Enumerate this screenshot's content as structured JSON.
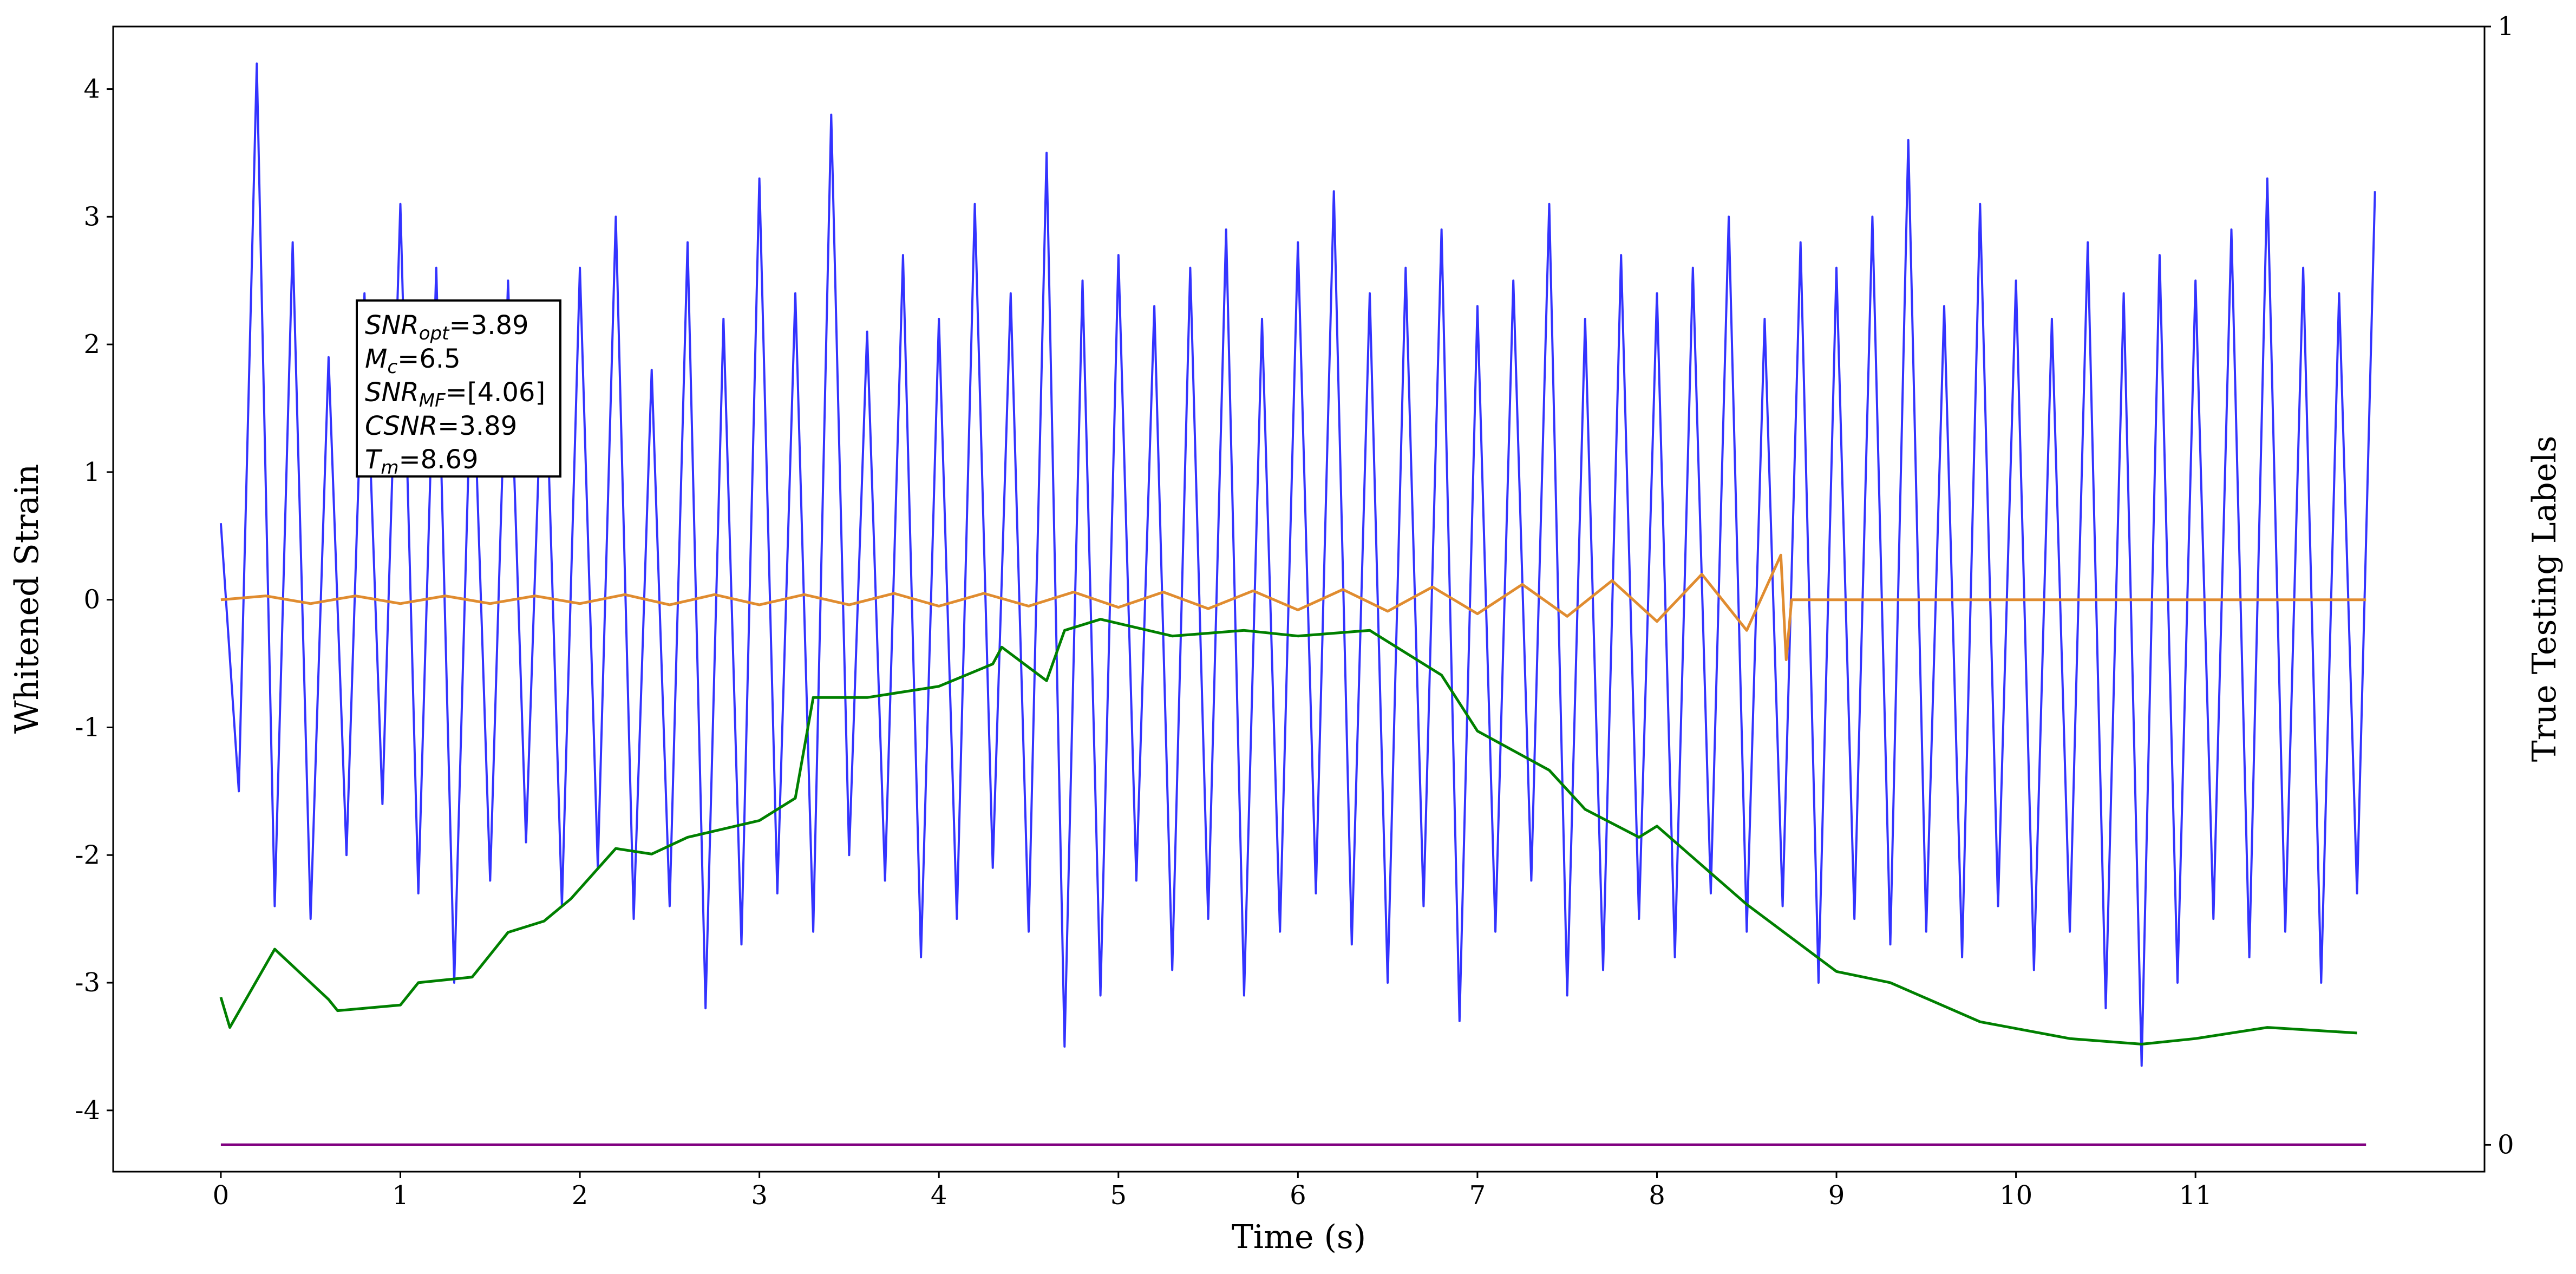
{
  "chart_data": {
    "type": "line",
    "xlabel": "Time (s)",
    "ylabel": "Whitened Strain",
    "y2label": "True Testing Labels",
    "xlim": [
      -0.6,
      12.61
    ],
    "ylim": [
      -4.48,
      4.49
    ],
    "y2lim": [
      -0.024,
      1.0
    ],
    "xticks": [
      0,
      1,
      2,
      3,
      4,
      5,
      6,
      7,
      8,
      9,
      10,
      11
    ],
    "yticks": [
      -4,
      -3,
      -2,
      -1,
      0,
      1,
      2,
      3,
      4
    ],
    "y2ticks": [
      0,
      1
    ],
    "grid": false,
    "annotation": [
      {
        "text": "SNR",
        "sub": "opt",
        "rest": "=3.89"
      },
      {
        "text": "M",
        "sub": "c",
        "rest": "=6.5"
      },
      {
        "text": "SNR",
        "sub": "MF",
        "rest": "=[4.06]"
      },
      {
        "text": "CSNR",
        "sub": null,
        "rest": "=3.89"
      },
      {
        "text": "T",
        "sub": "m",
        "rest": "=8.69"
      }
    ],
    "series": [
      {
        "color": "#3333ff",
        "axis": "y",
        "x": [
          0,
          0.1,
          0.2,
          0.3,
          0.4,
          0.5,
          0.6,
          0.7,
          0.8,
          0.9,
          1,
          1.1,
          1.2,
          1.3,
          1.4,
          1.5,
          1.6,
          1.7,
          1.8,
          1.9,
          2,
          2.1,
          2.2,
          2.3,
          2.4,
          2.5,
          2.6,
          2.7,
          2.8,
          2.9,
          3,
          3.1,
          3.2,
          3.3,
          3.4,
          3.5,
          3.6,
          3.7,
          3.8,
          3.9,
          4,
          4.1,
          4.2,
          4.3,
          4.4,
          4.5,
          4.6,
          4.7,
          4.8,
          4.9,
          5,
          5.1,
          5.2,
          5.3,
          5.4,
          5.5,
          5.6,
          5.7,
          5.8,
          5.9,
          6,
          6.1,
          6.2,
          6.3,
          6.4,
          6.5,
          6.6,
          6.7,
          6.8,
          6.9,
          7,
          7.1,
          7.2,
          7.3,
          7.4,
          7.5,
          7.6,
          7.7,
          7.8,
          7.9,
          8,
          8.1,
          8.2,
          8.3,
          8.4,
          8.5,
          8.6,
          8.7,
          8.8,
          8.9,
          9,
          9.1,
          9.2,
          9.3,
          9.4,
          9.5,
          9.6,
          9.7,
          9.8,
          9.9,
          10,
          10.1,
          10.2,
          10.3,
          10.4,
          10.5,
          10.6,
          10.7,
          10.8,
          10.9,
          11,
          11.1,
          11.2,
          11.3,
          11.4,
          11.5,
          11.6,
          11.7,
          11.8,
          11.9,
          12
        ],
        "values": [
          0.6,
          -1.5,
          4.2,
          -2.4,
          2.8,
          -2.5,
          1.9,
          -2.0,
          2.4,
          -1.6,
          3.1,
          -2.3,
          2.6,
          -3.0,
          2.1,
          -2.2,
          2.5,
          -1.9,
          2.3,
          -2.4,
          2.6,
          -2.1,
          3.0,
          -2.5,
          1.8,
          -2.4,
          2.8,
          -3.2,
          2.2,
          -2.7,
          3.3,
          -2.3,
          2.4,
          -2.6,
          3.8,
          -2.0,
          2.1,
          -2.2,
          2.7,
          -2.8,
          2.2,
          -2.5,
          3.1,
          -2.1,
          2.4,
          -2.6,
          3.5,
          -3.5,
          2.5,
          -3.1,
          2.7,
          -2.2,
          2.3,
          -2.9,
          2.6,
          -2.5,
          2.9,
          -3.1,
          2.2,
          -2.6,
          2.8,
          -2.3,
          3.2,
          -2.7,
          2.4,
          -3.0,
          2.6,
          -2.4,
          2.9,
          -3.3,
          2.3,
          -2.6,
          2.5,
          -2.2,
          3.1,
          -3.1,
          2.2,
          -2.9,
          2.7,
          -2.5,
          2.4,
          -2.8,
          2.6,
          -2.3,
          3.0,
          -2.6,
          2.2,
          -2.4,
          2.8,
          -3.0,
          2.6,
          -2.5,
          3.0,
          -2.7,
          3.6,
          -2.6,
          2.3,
          -2.8,
          3.1,
          -2.4,
          2.5,
          -2.9,
          2.2,
          -2.6,
          2.8,
          -3.2,
          2.4,
          -3.65,
          2.7,
          -3.0,
          2.5,
          -2.5,
          2.9,
          -2.8,
          3.3,
          -2.6,
          2.6,
          -3.0,
          2.4,
          -2.3,
          3.2
        ]
      },
      {
        "color": "#e08c30",
        "axis": "y",
        "x": [
          0,
          0.25,
          0.5,
          0.75,
          1,
          1.25,
          1.5,
          1.75,
          2,
          2.25,
          2.5,
          2.75,
          3,
          3.25,
          3.5,
          3.75,
          4,
          4.25,
          4.5,
          4.75,
          5,
          5.25,
          5.5,
          5.75,
          6,
          6.25,
          6.5,
          6.75,
          7,
          7.25,
          7.5,
          7.75,
          8,
          8.25,
          8.5,
          8.69,
          8.72,
          8.75,
          11.95
        ],
        "values": [
          0,
          0.03,
          -0.03,
          0.03,
          -0.03,
          0.03,
          -0.03,
          0.03,
          -0.03,
          0.04,
          -0.04,
          0.04,
          -0.04,
          0.04,
          -0.04,
          0.05,
          -0.05,
          0.05,
          -0.05,
          0.06,
          -0.06,
          0.06,
          -0.07,
          0.07,
          -0.08,
          0.08,
          -0.09,
          0.1,
          -0.11,
          0.12,
          -0.13,
          0.15,
          -0.17,
          0.2,
          -0.24,
          0.35,
          -0.47,
          0,
          0
        ]
      },
      {
        "color": "#008000",
        "axis": "y2",
        "x": [
          0,
          0.05,
          0.3,
          0.6,
          0.65,
          1.0,
          1.1,
          1.4,
          1.5,
          1.6,
          1.8,
          1.95,
          2.2,
          2.4,
          2.6,
          3.0,
          3.2,
          3.3,
          3.6,
          4.0,
          4.3,
          4.35,
          4.6,
          4.7,
          4.9,
          5.3,
          5.7,
          6.0,
          6.4,
          6.6,
          6.8,
          7.0,
          7.4,
          7.6,
          7.9,
          8.0,
          8.5,
          9.0,
          9.3,
          9.8,
          10.3,
          10.7,
          11.0,
          11.4,
          11.9
        ],
        "values": [
          0.132,
          0.105,
          0.175,
          0.13,
          0.12,
          0.125,
          0.145,
          0.15,
          0.17,
          0.19,
          0.2,
          0.22,
          0.265,
          0.26,
          0.275,
          0.29,
          0.31,
          0.4,
          0.4,
          0.41,
          0.43,
          0.445,
          0.415,
          0.46,
          0.47,
          0.455,
          0.46,
          0.455,
          0.46,
          0.44,
          0.42,
          0.37,
          0.335,
          0.3,
          0.275,
          0.285,
          0.215,
          0.155,
          0.145,
          0.11,
          0.095,
          0.09,
          0.095,
          0.105,
          0.1
        ]
      },
      {
        "color": "#800080",
        "axis": "y2",
        "x": [
          0,
          11.95
        ],
        "values": [
          0,
          0
        ]
      }
    ]
  }
}
